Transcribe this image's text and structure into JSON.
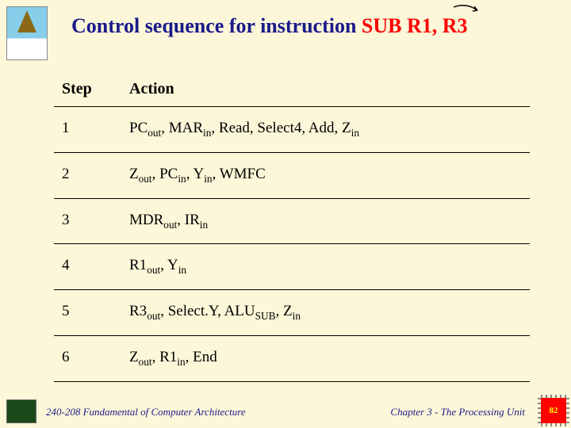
{
  "colors": {
    "background": "#fcf7d8",
    "title_blue": "#1a1a8a",
    "title_red": "#ff0000",
    "text": "#000000",
    "footer": "#1a1a8a",
    "chip_bg": "#ff0000",
    "chip_text": "#ffff00"
  },
  "title": {
    "prefix": "Control sequence for instruction ",
    "red_part": "SUB R1, R3"
  },
  "table": {
    "headers": {
      "step": "Step",
      "action": "Action"
    },
    "rows": [
      {
        "step": "1",
        "action_html": "PC<sub>out</sub>, MAR<sub>in</sub>, Read, Select4, Add, Z<sub>in</sub>"
      },
      {
        "step": "2",
        "action_html": "Z<sub>out</sub>, PC<sub>in</sub>, Y<sub>in</sub>, WMFC"
      },
      {
        "step": "3",
        "action_html": "MDR<sub>out</sub>, IR<sub>in</sub>"
      },
      {
        "step": "4",
        "action_html": "R1<sub>out</sub>, Y<sub>in</sub>"
      },
      {
        "step": "5",
        "action_html": "R3<sub>out</sub>, Select.Y, ALU<sub>SUB</sub>, Z<sub>in</sub>"
      },
      {
        "step": "6",
        "action_html": "Z<sub>out</sub>, R1<sub>in</sub>, End"
      }
    ]
  },
  "footer": {
    "left": "240-208 Fundamental of Computer Architecture",
    "right": "Chapter 3 - The Processing Unit"
  },
  "page_number": "82"
}
